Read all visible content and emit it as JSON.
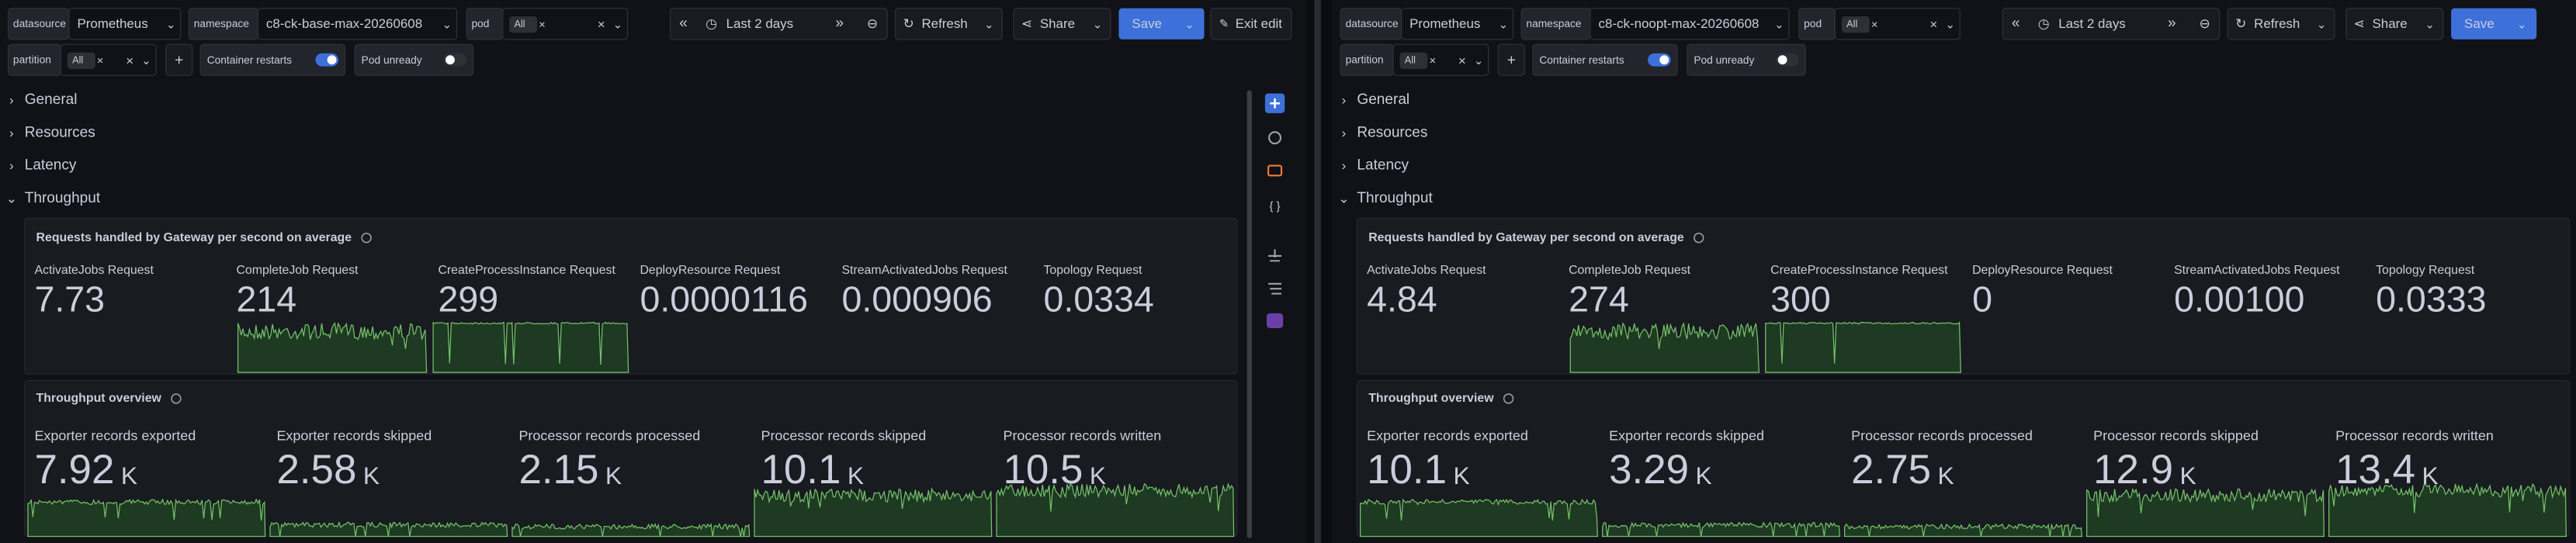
{
  "panes": [
    {
      "variables": {
        "datasource": {
          "label": "datasource",
          "value": "Prometheus"
        },
        "namespace": {
          "label": "namespace",
          "value": "c8-ck-base-max-20260608"
        },
        "pod": {
          "label": "pod",
          "value": "All"
        },
        "partition": {
          "label": "partition",
          "value": "All"
        }
      },
      "toggles": [
        {
          "label": "Container restarts",
          "on": true
        },
        {
          "label": "Pod unready",
          "on": false
        }
      ],
      "toolbar": {
        "time_range": "Last 2 days",
        "refresh": "Refresh",
        "share": "Share",
        "save": "Save",
        "exit_edit": "Exit edit"
      },
      "rows": [
        "General",
        "Resources",
        "Latency",
        "Throughput"
      ],
      "panels": [
        {
          "title": "Requests handled by Gateway per second on average",
          "stats": [
            {
              "name": "ActivateJobs Request",
              "value": "7.73"
            },
            {
              "name": "CompleteJob Request",
              "value": "214",
              "sparkline": true
            },
            {
              "name": "CreateProcessInstance Request",
              "value": "299",
              "sparkline": true
            },
            {
              "name": "DeployResource Request",
              "value": "0.0000116"
            },
            {
              "name": "StreamActivatedJobs Request",
              "value": "0.000906"
            },
            {
              "name": "Topology Request",
              "value": "0.0334"
            }
          ]
        },
        {
          "title": "Throughput overview",
          "stats": [
            {
              "name": "Exporter records exported",
              "value": "7.92",
              "unit": "K",
              "sparkline": true
            },
            {
              "name": "Exporter records skipped",
              "value": "2.58",
              "unit": "K",
              "sparkline": true
            },
            {
              "name": "Processor records processed",
              "value": "2.15",
              "unit": "K",
              "sparkline": true
            },
            {
              "name": "Processor records skipped",
              "value": "10.1",
              "unit": "K",
              "sparkline": true
            },
            {
              "name": "Processor records written",
              "value": "10.5",
              "unit": "K",
              "sparkline": true
            }
          ]
        }
      ]
    },
    {
      "variables": {
        "datasource": {
          "label": "datasource",
          "value": "Prometheus"
        },
        "namespace": {
          "label": "namespace",
          "value": "c8-ck-noopt-max-20260608"
        },
        "pod": {
          "label": "pod",
          "value": "All"
        },
        "partition": {
          "label": "partition",
          "value": "All"
        }
      },
      "toggles": [
        {
          "label": "Container restarts",
          "on": true
        },
        {
          "label": "Pod unready",
          "on": false
        }
      ],
      "toolbar": {
        "time_range": "Last 2 days",
        "refresh": "Refresh",
        "share": "Share",
        "save": "Save"
      },
      "rows": [
        "General",
        "Resources",
        "Latency",
        "Throughput"
      ],
      "panels": [
        {
          "title": "Requests handled by Gateway per second on average",
          "stats": [
            {
              "name": "ActivateJobs Request",
              "value": "4.84"
            },
            {
              "name": "CompleteJob Request",
              "value": "274",
              "sparkline": true
            },
            {
              "name": "CreateProcessInstance Request",
              "value": "300",
              "sparkline": true
            },
            {
              "name": "DeployResource Request",
              "value": "0"
            },
            {
              "name": "StreamActivatedJobs Request",
              "value": "0.00100"
            },
            {
              "name": "Topology Request",
              "value": "0.0333"
            }
          ]
        },
        {
          "title": "Throughput overview",
          "stats": [
            {
              "name": "Exporter records exported",
              "value": "10.1",
              "unit": "K",
              "sparkline": true
            },
            {
              "name": "Exporter records skipped",
              "value": "3.29",
              "unit": "K",
              "sparkline": true
            },
            {
              "name": "Processor records processed",
              "value": "2.75",
              "unit": "K",
              "sparkline": true
            },
            {
              "name": "Processor records skipped",
              "value": "12.9",
              "unit": "K",
              "sparkline": true
            },
            {
              "name": "Processor records written",
              "value": "13.4",
              "unit": "K",
              "sparkline": true
            }
          ]
        }
      ]
    }
  ]
}
